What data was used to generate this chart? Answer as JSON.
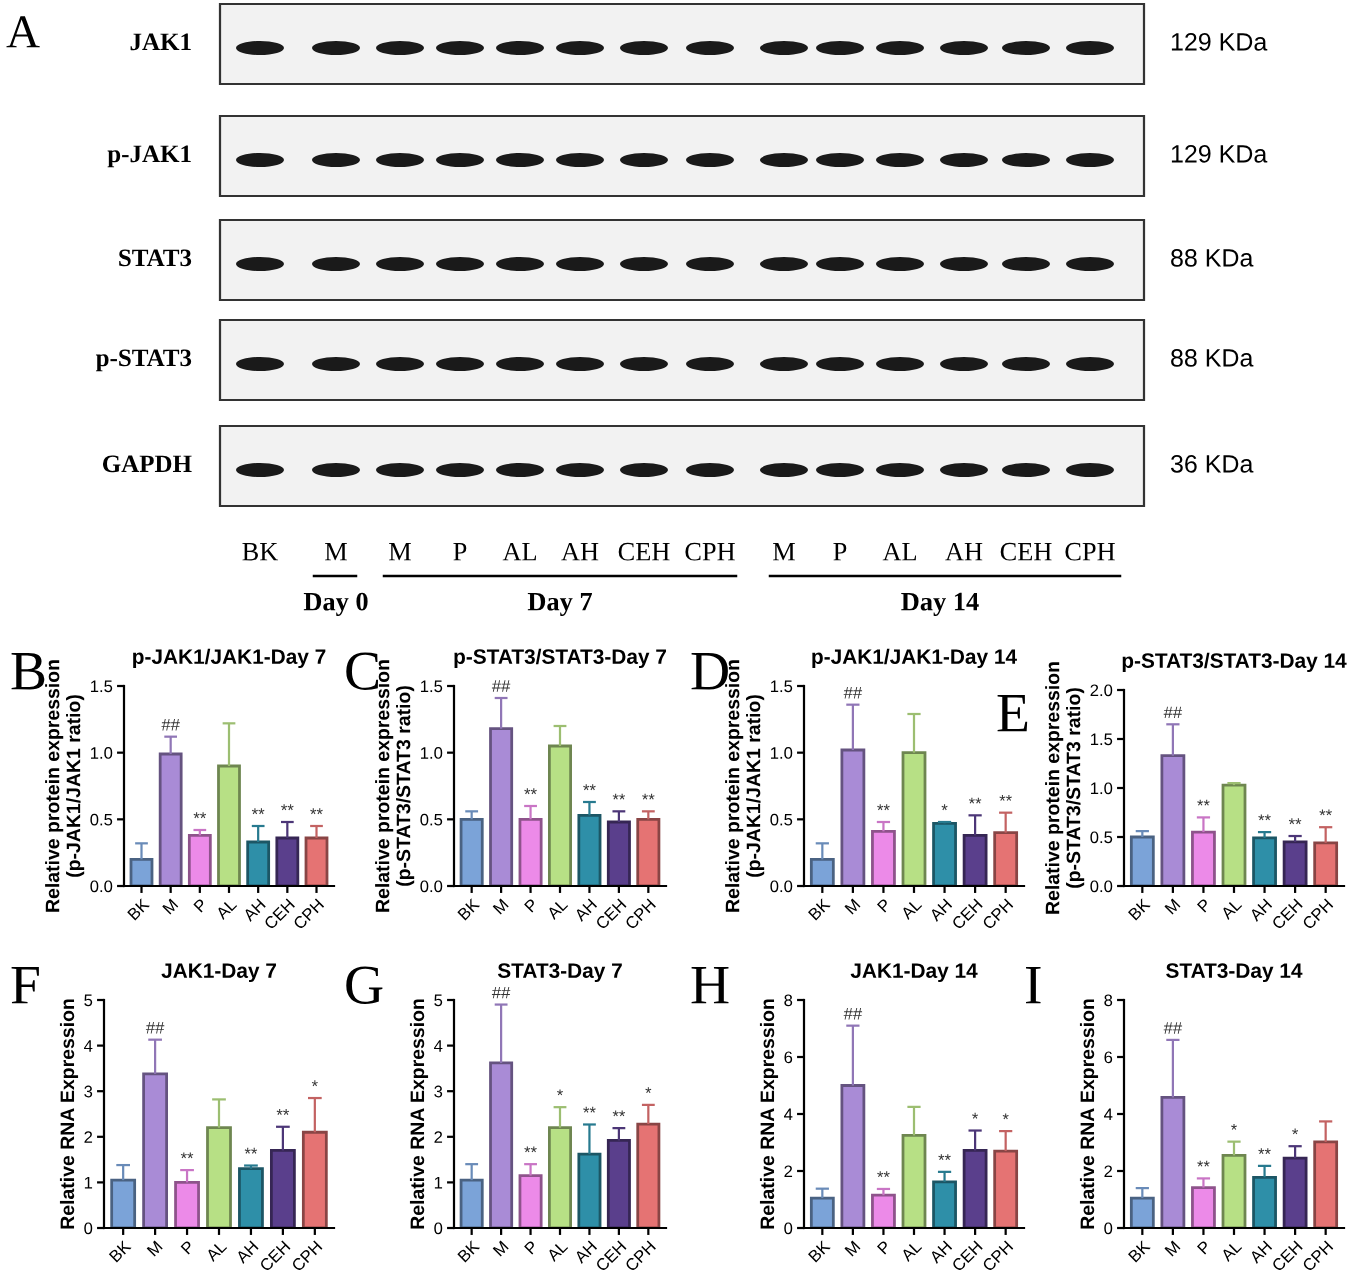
{
  "chart_data": [
    {
      "type": "other",
      "annotations": [
        "A",
        "JAK1",
        "p-JAK1",
        "STAT3",
        "p-STAT3",
        "GAPDH",
        "129 KDa",
        "129 KDa",
        "88 KDa",
        "88 KDa",
        "36 KDa",
        "BK",
        "M",
        "M",
        "P",
        "AL",
        "AH",
        "CEH",
        "CPH",
        "M",
        "P",
        "AL",
        "AH",
        "CEH",
        "CPH",
        "Day 0",
        "Day 7",
        "Day 14"
      ]
    },
    {
      "type": "bar",
      "title": "p-JAK1/JAK1-Day 7",
      "ylabel": "Relative protein expression\n(p-JAK1/JAK1 ratio)",
      "categories": [
        "BK",
        "M",
        "P",
        "AL",
        "AH",
        "CEH",
        "CPH"
      ],
      "values": [
        0.2,
        0.99,
        0.38,
        0.9,
        0.33,
        0.36,
        0.36
      ],
      "errors": [
        [
          0.2,
          0.32
        ],
        [
          0.99,
          1.12
        ],
        [
          0.38,
          0.42
        ],
        [
          0.9,
          1.22
        ],
        [
          0.33,
          0.45
        ],
        [
          0.36,
          0.48
        ],
        [
          0.36,
          0.45
        ]
      ],
      "colors": [
        "#7ba3d8",
        "#a98bd6",
        "#ec8ae8",
        "#b7e085",
        "#2e8fa8",
        "#5a3f8c",
        "#e57373"
      ],
      "ylim": [
        0,
        1.5
      ],
      "yticks": [
        {
          "value": 0,
          "label": "0.0"
        },
        0.5,
        {
          "value": 1,
          "label": "1.0"
        },
        1.5
      ],
      "annotations": [
        "B",
        {
          "text": "##",
          "x": "M",
          "y": 1.12
        },
        {
          "text": "**",
          "x": "P",
          "y": 0.42
        },
        {
          "text": "**",
          "x": "AH",
          "y": 0.45
        },
        {
          "text": "**",
          "x": "CEH",
          "y": 0.48
        },
        {
          "text": "**",
          "x": "CPH",
          "y": 0.45
        }
      ]
    },
    {
      "type": "bar",
      "title": "p-STAT3/STAT3-Day 7",
      "ylabel": "Relative protein expression\n(p-STAT3/STAT3 ratio)",
      "categories": [
        "BK",
        "M",
        "P",
        "AL",
        "AH",
        "CEH",
        "CPH"
      ],
      "values": [
        0.5,
        1.18,
        0.5,
        1.05,
        0.53,
        0.48,
        0.5
      ],
      "errors": [
        [
          0.5,
          0.56
        ],
        [
          1.18,
          1.41
        ],
        [
          0.5,
          0.6
        ],
        [
          1.05,
          1.2
        ],
        [
          0.53,
          0.63
        ],
        [
          0.48,
          0.56
        ],
        [
          0.5,
          0.56
        ]
      ],
      "colors": [
        "#7ba3d8",
        "#a98bd6",
        "#ec8ae8",
        "#b7e085",
        "#2e8fa8",
        "#5a3f8c",
        "#e57373"
      ],
      "ylim": [
        0,
        1.5
      ],
      "yticks": [
        {
          "value": 0,
          "label": "0.0"
        },
        0.5,
        {
          "value": 1,
          "label": "1.0"
        },
        1.5
      ],
      "annotations": [
        "C",
        {
          "text": "##",
          "x": "M",
          "y": 1.41
        },
        {
          "text": "**",
          "x": "P",
          "y": 0.6
        },
        {
          "text": "**",
          "x": "AH",
          "y": 0.63
        },
        {
          "text": "**",
          "x": "CEH",
          "y": 0.56
        },
        {
          "text": "**",
          "x": "CPH",
          "y": 0.56
        }
      ]
    },
    {
      "type": "bar",
      "title": "p-JAK1/JAK1-Day 14",
      "ylabel": "Relative protein expression\n(p-JAK1/JAK1 ratio)",
      "categories": [
        "BK",
        "M",
        "P",
        "AL",
        "AH",
        "CEH",
        "CPH"
      ],
      "values": [
        0.2,
        1.02,
        0.41,
        1.0,
        0.47,
        0.38,
        0.4
      ],
      "errors": [
        [
          0.2,
          0.32
        ],
        [
          1.02,
          1.36
        ],
        [
          0.41,
          0.48
        ],
        [
          1.0,
          1.29
        ],
        [
          0.47,
          0.48
        ],
        [
          0.38,
          0.53
        ],
        [
          0.4,
          0.55
        ]
      ],
      "colors": [
        "#7ba3d8",
        "#a98bd6",
        "#ec8ae8",
        "#b7e085",
        "#2e8fa8",
        "#5a3f8c",
        "#e57373"
      ],
      "ylim": [
        0,
        1.5
      ],
      "yticks": [
        {
          "value": 0,
          "label": "0.0"
        },
        0.5,
        {
          "value": 1,
          "label": "1.0"
        },
        1.5
      ],
      "annotations": [
        "D",
        {
          "text": "##",
          "x": "M",
          "y": 1.36
        },
        {
          "text": "**",
          "x": "P",
          "y": 0.48
        },
        {
          "text": "*",
          "x": "AH",
          "y": 0.48
        },
        {
          "text": "**",
          "x": "CEH",
          "y": 0.53
        },
        {
          "text": "**",
          "x": "CPH",
          "y": 0.55
        }
      ]
    },
    {
      "type": "bar",
      "title": "p-STAT3/STAT3-Day 14",
      "ylabel": "Relative protein expression\n(p-STAT3/STAT3 ratio)",
      "categories": [
        "BK",
        "M",
        "P",
        "AL",
        "AH",
        "CEH",
        "CPH"
      ],
      "values": [
        0.5,
        1.33,
        0.55,
        1.03,
        0.49,
        0.45,
        0.44
      ],
      "errors": [
        [
          0.5,
          0.56
        ],
        [
          1.33,
          1.65
        ],
        [
          0.55,
          0.7
        ],
        [
          1.03,
          1.05
        ],
        [
          0.49,
          0.55
        ],
        [
          0.45,
          0.51
        ],
        [
          0.44,
          0.6
        ]
      ],
      "colors": [
        "#7ba3d8",
        "#a98bd6",
        "#ec8ae8",
        "#b7e085",
        "#2e8fa8",
        "#5a3f8c",
        "#e57373"
      ],
      "ylim": [
        0,
        2.0
      ],
      "yticks": [
        {
          "value": 0,
          "label": "0.0"
        },
        0.5,
        {
          "value": 1,
          "label": "1.0"
        },
        1.5,
        {
          "value": 2,
          "label": "2.0"
        }
      ],
      "annotations": [
        "E",
        {
          "text": "##",
          "x": "M",
          "y": 1.65
        },
        {
          "text": "**",
          "x": "P",
          "y": 0.7
        },
        {
          "text": "**",
          "x": "AH",
          "y": 0.55
        },
        {
          "text": "**",
          "x": "CEH",
          "y": 0.51
        },
        {
          "text": "**",
          "x": "CPH",
          "y": 0.6
        }
      ]
    },
    {
      "type": "bar",
      "title": "JAK1-Day 7",
      "ylabel": "Relative RNA Expression",
      "categories": [
        "BK",
        "M",
        "P",
        "AL",
        "AH",
        "CEH",
        "CPH"
      ],
      "values": [
        1.05,
        3.38,
        1.0,
        2.2,
        1.3,
        1.7,
        2.1
      ],
      "errors": [
        [
          1.05,
          1.38
        ],
        [
          3.38,
          4.13
        ],
        [
          1.0,
          1.27
        ],
        [
          2.2,
          2.82
        ],
        [
          1.3,
          1.37
        ],
        [
          1.7,
          2.22
        ],
        [
          2.1,
          2.85
        ]
      ],
      "colors": [
        "#7ba3d8",
        "#a98bd6",
        "#ec8ae8",
        "#b7e085",
        "#2e8fa8",
        "#5a3f8c",
        "#e57373"
      ],
      "ylim": [
        0,
        5
      ],
      "yticks": [
        0,
        1,
        2,
        3,
        4,
        5
      ],
      "annotations": [
        "F",
        {
          "text": "##",
          "x": "M",
          "y": 4.13
        },
        {
          "text": "**",
          "x": "P",
          "y": 1.27
        },
        {
          "text": "**",
          "x": "AH",
          "y": 1.37
        },
        {
          "text": "**",
          "x": "CEH",
          "y": 2.22
        },
        {
          "text": "*",
          "x": "CPH",
          "y": 2.85
        }
      ]
    },
    {
      "type": "bar",
      "title": "STAT3-Day 7",
      "ylabel": "Relative RNA Expression",
      "categories": [
        "BK",
        "M",
        "P",
        "AL",
        "AH",
        "CEH",
        "CPH"
      ],
      "values": [
        1.05,
        3.62,
        1.15,
        2.2,
        1.62,
        1.92,
        2.28
      ],
      "errors": [
        [
          1.05,
          1.4
        ],
        [
          3.62,
          4.9
        ],
        [
          1.15,
          1.4
        ],
        [
          2.2,
          2.65
        ],
        [
          1.62,
          2.27
        ],
        [
          1.92,
          2.19
        ],
        [
          2.28,
          2.7
        ]
      ],
      "colors": [
        "#7ba3d8",
        "#a98bd6",
        "#ec8ae8",
        "#b7e085",
        "#2e8fa8",
        "#5a3f8c",
        "#e57373"
      ],
      "ylim": [
        0,
        5
      ],
      "yticks": [
        0,
        1,
        2,
        3,
        4,
        5
      ],
      "annotations": [
        "G",
        {
          "text": "##",
          "x": "M",
          "y": 4.9
        },
        {
          "text": "**",
          "x": "P",
          "y": 1.4
        },
        {
          "text": "*",
          "x": "AL",
          "y": 2.65
        },
        {
          "text": "**",
          "x": "AH",
          "y": 2.27
        },
        {
          "text": "**",
          "x": "CEH",
          "y": 2.19
        },
        {
          "text": "*",
          "x": "CPH",
          "y": 2.7
        }
      ]
    },
    {
      "type": "bar",
      "title": "JAK1-Day 14",
      "ylabel": "Relative RNA Expression",
      "categories": [
        "BK",
        "M",
        "P",
        "AL",
        "AH",
        "CEH",
        "CPH"
      ],
      "values": [
        1.05,
        5.0,
        1.15,
        3.25,
        1.62,
        2.72,
        2.7
      ],
      "errors": [
        [
          1.05,
          1.38
        ],
        [
          5.0,
          7.1
        ],
        [
          1.15,
          1.37
        ],
        [
          3.25,
          4.25
        ],
        [
          1.62,
          1.97
        ],
        [
          2.72,
          3.42
        ],
        [
          2.7,
          3.4
        ]
      ],
      "colors": [
        "#7ba3d8",
        "#a98bd6",
        "#ec8ae8",
        "#b7e085",
        "#2e8fa8",
        "#5a3f8c",
        "#e57373"
      ],
      "ylim": [
        0,
        8
      ],
      "yticks": [
        0,
        2,
        4,
        6,
        8
      ],
      "annotations": [
        "H",
        {
          "text": "##",
          "x": "M",
          "y": 7.1
        },
        {
          "text": "**",
          "x": "P",
          "y": 1.37
        },
        {
          "text": "**",
          "x": "AH",
          "y": 1.97
        },
        {
          "text": "*",
          "x": "CEH",
          "y": 3.42
        },
        {
          "text": "*",
          "x": "CPH",
          "y": 3.4
        }
      ]
    },
    {
      "type": "bar",
      "title": "STAT3-Day 14",
      "ylabel": "Relative RNA Expression",
      "categories": [
        "BK",
        "M",
        "P",
        "AL",
        "AH",
        "CEH",
        "CPH"
      ],
      "values": [
        1.05,
        4.58,
        1.42,
        2.55,
        1.78,
        2.45,
        3.02
      ],
      "errors": [
        [
          1.05,
          1.4
        ],
        [
          4.58,
          6.6
        ],
        [
          1.42,
          1.74
        ],
        [
          2.55,
          3.03
        ],
        [
          1.78,
          2.18
        ],
        [
          2.45,
          2.87
        ],
        [
          3.02,
          3.74
        ]
      ],
      "colors": [
        "#7ba3d8",
        "#a98bd6",
        "#ec8ae8",
        "#b7e085",
        "#2e8fa8",
        "#5a3f8c",
        "#e57373"
      ],
      "ylim": [
        0,
        8
      ],
      "yticks": [
        0,
        2,
        4,
        6,
        8
      ],
      "annotations": [
        "I",
        {
          "text": "##",
          "x": "M",
          "y": 6.6
        },
        {
          "text": "**",
          "x": "P",
          "y": 1.74
        },
        {
          "text": "*",
          "x": "AL",
          "y": 3.03
        },
        {
          "text": "**",
          "x": "AH",
          "y": 2.18
        },
        {
          "text": "*",
          "x": "CEH",
          "y": 2.87
        }
      ]
    }
  ]
}
